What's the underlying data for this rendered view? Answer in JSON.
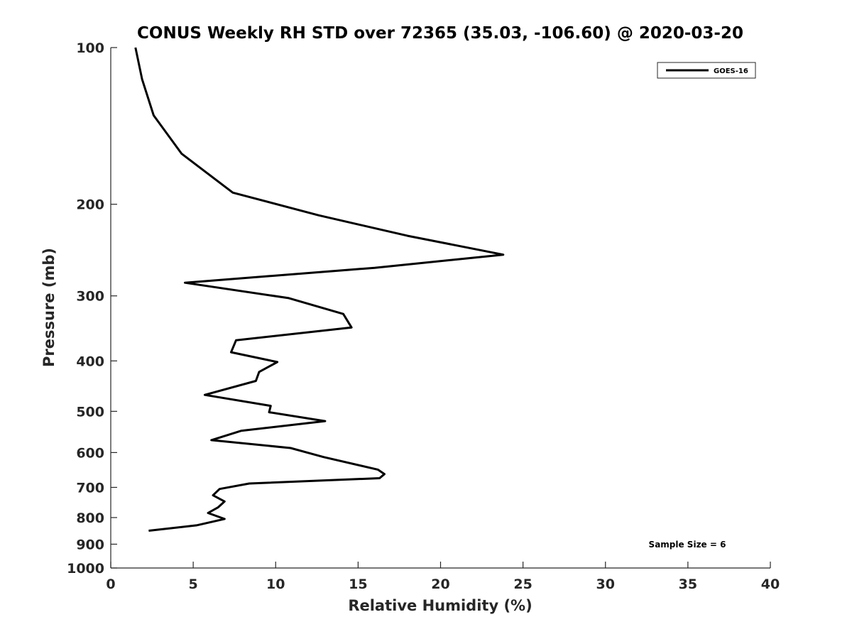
{
  "chart_data": {
    "type": "line",
    "title": "CONUS Weekly RH STD over 72365 (35.03, -106.60) @ 2020-03-20",
    "xlabel": "Relative Humidity (%)",
    "ylabel": "Pressure (mb)",
    "xlim": [
      0,
      40
    ],
    "ylim": [
      100,
      1000
    ],
    "y_scale": "log",
    "y_reversed": true,
    "xticks": [
      0,
      5,
      10,
      15,
      20,
      25,
      30,
      35,
      40
    ],
    "yticks": [
      100,
      200,
      300,
      400,
      500,
      600,
      700,
      800,
      900,
      1000
    ],
    "grid": false,
    "legend_position": "top-right",
    "annotation": "Sample Size = 6",
    "colors": {
      "series": "#000000",
      "axes": "#262626"
    },
    "series": [
      {
        "name": "GOES-16",
        "x": [
          1.5,
          1.9,
          2.6,
          4.3,
          7.4,
          12.6,
          18.0,
          23.8,
          16.0,
          4.5,
          10.8,
          14.1,
          14.6,
          7.6,
          7.3,
          10.1,
          9.0,
          8.8,
          5.7,
          9.7,
          9.6,
          13.0,
          7.9,
          6.1,
          10.9,
          12.9,
          16.2,
          16.6,
          16.3,
          8.4,
          6.6,
          6.2,
          6.9,
          6.5,
          5.9,
          6.9,
          5.2,
          2.3
        ],
        "y": [
          100,
          115,
          135,
          160,
          190,
          210,
          230,
          250,
          265,
          283,
          303,
          325,
          345,
          365,
          385,
          402,
          420,
          437,
          465,
          488,
          502,
          522,
          545,
          568,
          588,
          612,
          647,
          660,
          672,
          688,
          705,
          725,
          745,
          765,
          784,
          805,
          828,
          848
        ]
      }
    ]
  }
}
